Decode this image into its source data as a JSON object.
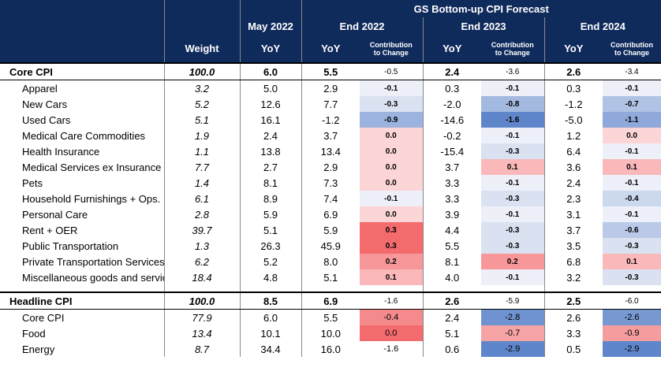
{
  "header": {
    "group_title": "GS Bottom-up CPI Forecast",
    "may_label": "May 2022",
    "end2022": "End 2022",
    "end2023": "End 2023",
    "end2024": "End 2024",
    "weight": "Weight",
    "yoy": "YoY",
    "contrib_line1": "Contribution",
    "contrib_line2": "to Change"
  },
  "core": {
    "label": "Core CPI",
    "weight": "100.0",
    "may": "6.0",
    "y22": "5.5",
    "c22": "-0.5",
    "y23": "2.4",
    "c23": "-3.6",
    "y24": "2.6",
    "c24": "-3.4",
    "rows": [
      {
        "label": "Apparel",
        "weight": "3.2",
        "may": "5.0",
        "y22": "2.9",
        "c22": "-0.1",
        "y23": "0.3",
        "c23": "-0.1",
        "y24": "0.3",
        "c24": "-0.1",
        "bg22": "#eef0f9",
        "bg23": "#eef0f9",
        "bg24": "#eef0f9"
      },
      {
        "label": "New Cars",
        "weight": "5.2",
        "may": "12.6",
        "y22": "7.7",
        "c22": "-0.3",
        "y23": "-2.0",
        "c23": "-0.8",
        "y24": "-1.2",
        "c24": "-0.7",
        "bg22": "#dae2f1",
        "bg23": "#a3b9e0",
        "bg24": "#b0c3e4"
      },
      {
        "label": "Used Cars",
        "weight": "5.1",
        "may": "16.1",
        "y22": "-1.2",
        "c22": "-0.9",
        "y23": "-14.6",
        "c23": "-1.6",
        "y24": "-5.0",
        "c24": "-1.1",
        "bg22": "#9bb3de",
        "bg23": "#5f86cb",
        "bg24": "#8ea9da"
      },
      {
        "label": "Medical Care Commodities",
        "weight": "1.9",
        "may": "2.4",
        "y22": "3.7",
        "c22": "0.0",
        "y23": "-0.2",
        "c23": "-0.1",
        "y24": "1.2",
        "c24": "0.0",
        "bg22": "#fcd5d6",
        "bg23": "#eef0f9",
        "bg24": "#fcd5d6"
      },
      {
        "label": "Health Insurance",
        "weight": "1.1",
        "may": "13.8",
        "y22": "13.4",
        "c22": "0.0",
        "y23": "-15.4",
        "c23": "-0.3",
        "y24": "6.4",
        "c24": "-0.1",
        "bg22": "#fcd5d6",
        "bg23": "#dae2f1",
        "bg24": "#eef0f9"
      },
      {
        "label": "Medical Services ex Insurance",
        "weight": "7.7",
        "may": "2.7",
        "y22": "2.9",
        "c22": "0.0",
        "y23": "3.7",
        "c23": "0.1",
        "y24": "3.6",
        "c24": "0.1",
        "bg22": "#fcd5d6",
        "bg23": "#fab8ba",
        "bg24": "#fab8ba"
      },
      {
        "label": "Pets",
        "weight": "1.4",
        "may": "8.1",
        "y22": "7.3",
        "c22": "0.0",
        "y23": "3.3",
        "c23": "-0.1",
        "y24": "2.4",
        "c24": "-0.1",
        "bg22": "#fcd5d6",
        "bg23": "#eef0f9",
        "bg24": "#eef0f9"
      },
      {
        "label": "Household Furnishings + Ops.",
        "weight": "6.1",
        "may": "8.9",
        "y22": "7.4",
        "c22": "-0.1",
        "y23": "3.3",
        "c23": "-0.3",
        "y24": "2.3",
        "c24": "-0.4",
        "bg22": "#eef0f9",
        "bg23": "#dae2f1",
        "bg24": "#ccd8ee"
      },
      {
        "label": "Personal Care",
        "weight": "2.8",
        "may": "5.9",
        "y22": "6.9",
        "c22": "0.0",
        "y23": "3.9",
        "c23": "-0.1",
        "y24": "3.1",
        "c24": "-0.1",
        "bg22": "#fcd5d6",
        "bg23": "#eef0f9",
        "bg24": "#eef0f9"
      },
      {
        "label": "Rent + OER",
        "weight": "39.7",
        "may": "5.1",
        "y22": "5.9",
        "c22": "0.3",
        "y23": "4.4",
        "c23": "-0.3",
        "y24": "3.7",
        "c24": "-0.6",
        "bg22": "#f46b6e",
        "bg23": "#dae2f1",
        "bg24": "#b9c9e7"
      },
      {
        "label": "Public Transportation",
        "weight": "1.3",
        "may": "26.3",
        "y22": "45.9",
        "c22": "0.3",
        "y23": "5.5",
        "c23": "-0.3",
        "y24": "3.5",
        "c24": "-0.3",
        "bg22": "#f46b6e",
        "bg23": "#dae2f1",
        "bg24": "#dae2f1"
      },
      {
        "label": "Private Transportation Services",
        "weight": "6.2",
        "may": "5.2",
        "y22": "8.0",
        "c22": "0.2",
        "y23": "8.1",
        "c23": "0.2",
        "y24": "6.8",
        "c24": "0.1",
        "bg22": "#f79799",
        "bg23": "#f79799",
        "bg24": "#fab8ba"
      },
      {
        "label": "Miscellaneous goods and services",
        "weight": "18.4",
        "may": "4.8",
        "y22": "5.1",
        "c22": "0.1",
        "y23": "4.0",
        "c23": "-0.1",
        "y24": "3.2",
        "c24": "-0.3",
        "bg22": "#fab8ba",
        "bg23": "#eef0f9",
        "bg24": "#dae2f1"
      }
    ]
  },
  "headline": {
    "label": "Headline CPI",
    "weight": "100.0",
    "may": "8.5",
    "y22": "6.9",
    "c22": "-1.6",
    "y23": "2.6",
    "c23": "-5.9",
    "y24": "2.5",
    "c24": "-6.0",
    "rows": [
      {
        "label": "Core CPI",
        "weight": "77.9",
        "may": "6.0",
        "y22": "5.5",
        "c22": "-0.4",
        "y23": "2.4",
        "c23": "-2.8",
        "y24": "2.6",
        "c24": "-2.6",
        "bg22": "#f58a8c",
        "bg23": "#6f92d0",
        "bg24": "#7898d2"
      },
      {
        "label": "Food",
        "weight": "13.4",
        "may": "10.1",
        "y22": "10.0",
        "c22": "0.0",
        "y23": "5.1",
        "c23": "-0.7",
        "y24": "3.3",
        "c24": "-0.9",
        "bg22": "#f46b6e",
        "bg23": "#f5a3a5",
        "bg24": "#f49c9e"
      },
      {
        "label": "Energy",
        "weight": "8.7",
        "may": "34.4",
        "y22": "16.0",
        "c22": "-1.6",
        "y23": "0.6",
        "c23": "-2.9",
        "y24": "0.5",
        "c24": "-2.9",
        "bg22": "#ffffff",
        "bg23": "#5f86cb",
        "bg24": "#5f86cb"
      }
    ]
  }
}
